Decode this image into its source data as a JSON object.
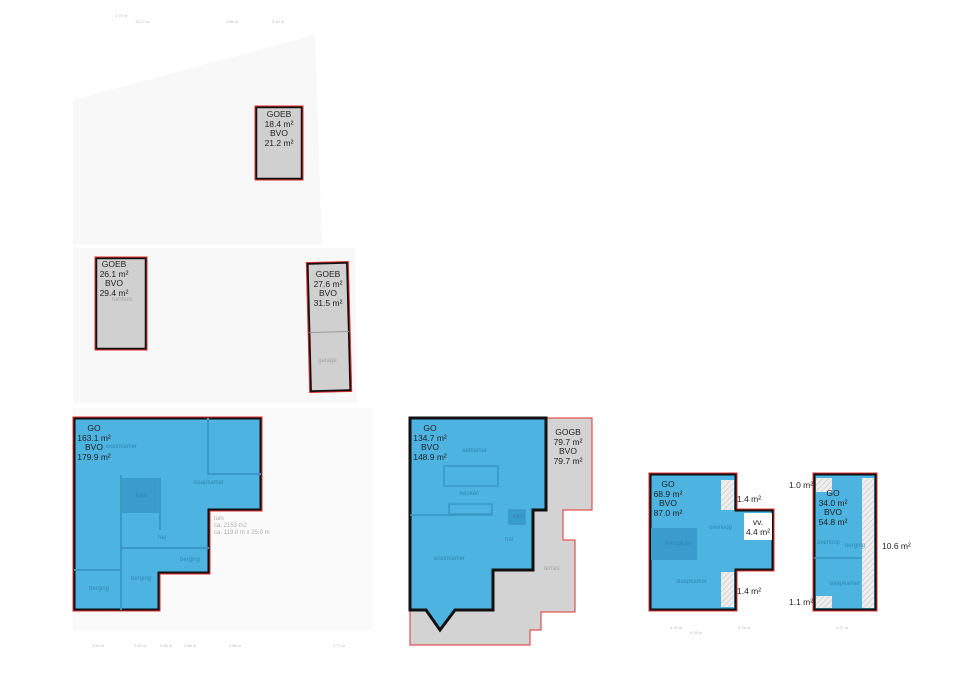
{
  "colors": {
    "living_area": "#4db3e0",
    "outbuilding": "#d0d0d0",
    "outline": "#e03030",
    "wall": "#111111",
    "plot": "#f7f7f7"
  },
  "outbuildings": [
    {
      "code": "GOEB",
      "go": "18.4 m²",
      "bvo_label": "BVO",
      "bvo": "21.2 m²",
      "room": ""
    },
    {
      "code": "GOEB",
      "go": "26.1 m²",
      "bvo_label": "BVO",
      "bvo": "29.4 m²",
      "room": "tuinhuis"
    },
    {
      "code": "GOEB",
      "go": "27.6 m²",
      "bvo_label": "BVO",
      "bvo": "31.5 m²",
      "room": "garage"
    }
  ],
  "floors": [
    {
      "code": "GO",
      "go": "163.1 m²",
      "bvo_label": "BVO",
      "bvo": "179.9 m²",
      "rooms": [
        "woonkamer",
        "slaapkamer",
        "kast",
        "hal",
        "berging",
        "berging",
        "berging"
      ],
      "garden": {
        "name": "tuin",
        "area": "ca. 2153 m2",
        "size": "ca. 119.0 m x 25.0 m"
      }
    },
    {
      "code": "GO",
      "go": "134.7 m²",
      "bvo_label": "BVO",
      "bvo": "148.9 m²",
      "rooms": [
        "eetkamer",
        "keuken",
        "kast",
        "hal",
        "woonkamer"
      ],
      "extra": {
        "code": "GOGB",
        "go": "79.7 m²",
        "bvo_label": "BVO",
        "bvo": "79.7 m²",
        "room": "terras"
      }
    },
    {
      "code": "GO",
      "go": "68.9 m²",
      "bvo_label": "BVO",
      "bvo": "87.0 m²",
      "rooms": [
        "overloop",
        "inloopkast",
        "slaapkamer"
      ],
      "annotations": [
        "1.4 m²",
        "vv.",
        "4.4 m²",
        "1.4 m²"
      ]
    },
    {
      "code": "GO",
      "go": "34.0 m²",
      "bvo_label": "BVO",
      "bvo": "54.8 m²",
      "rooms": [
        "overloop",
        "berging",
        "slaapkamer"
      ],
      "annotations": [
        "1.0 m²",
        "1.1 m²",
        "10.6 m²"
      ]
    }
  ],
  "dimensions": {
    "top": [
      "3.75 m",
      "10.27 m",
      "3.86 m",
      "3.44 m"
    ],
    "bottom1": [
      "3.50 m",
      "2.53 m",
      "0.88 m",
      "2.66 m",
      "3.86 m",
      "2.77 m"
    ],
    "bottom3": [
      "4.30 m",
      "3.76 m",
      "6.28 m"
    ],
    "bottom4": [
      "4.27 m"
    ]
  }
}
